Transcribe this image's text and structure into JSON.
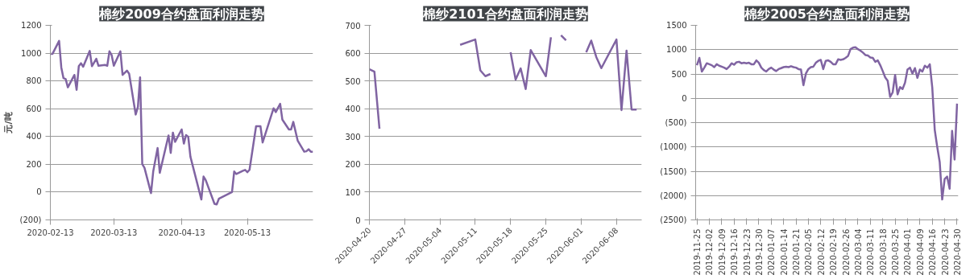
{
  "chart_data": [
    {
      "type": "line",
      "title": "棉纱2009合约盘面利润走势",
      "ylabel": "元/吨",
      "grid": "y",
      "xlim": [
        "2020-02-13",
        "2020-06-12"
      ],
      "xticks": [
        "2020-02-13",
        "2020-03-13",
        "2020-04-13",
        "2020-05-13"
      ],
      "ylim": [
        -200,
        1200
      ],
      "yticks": [
        {
          "value": -200,
          "label": "(200)"
        },
        0,
        200,
        400,
        600,
        800,
        1000,
        1200
      ],
      "x": [
        "2020-02-13",
        "2020-02-14",
        "2020-02-17",
        "2020-02-18",
        "2020-02-19",
        "2020-02-20",
        "2020-02-21",
        "2020-02-24",
        "2020-02-25",
        "2020-02-26",
        "2020-02-27",
        "2020-02-28",
        "2020-03-02",
        "2020-03-03",
        "2020-03-05",
        "2020-03-06",
        "2020-03-09",
        "2020-03-10",
        "2020-03-11",
        "2020-03-12",
        "2020-03-13",
        "2020-03-16",
        "2020-03-17",
        "2020-03-19",
        "2020-03-20",
        "2020-03-23",
        "2020-03-24",
        "2020-03-25",
        "2020-03-26",
        "2020-03-27",
        "2020-03-30",
        "2020-03-31",
        "2020-04-02",
        "2020-04-03",
        "2020-04-07",
        "2020-04-08",
        "2020-04-09",
        "2020-04-10",
        "2020-04-13",
        "2020-04-14",
        "2020-04-15",
        "2020-04-16",
        "2020-04-17",
        "2020-04-22",
        "2020-04-23",
        "2020-04-24",
        "2020-04-28",
        "2020-04-29",
        "2020-04-30",
        "2020-05-06",
        "2020-05-07",
        "2020-05-08",
        "2020-05-11",
        "2020-05-12",
        "2020-05-13",
        "2020-05-14",
        "2020-05-17",
        "2020-05-19",
        "2020-05-20",
        "2020-05-25",
        "2020-05-26",
        "2020-05-28",
        "2020-05-29",
        "2020-06-01",
        "2020-06-02",
        "2020-06-03",
        "2020-06-05",
        "2020-06-08",
        "2020-06-09",
        "2020-06-10",
        "2020-06-11",
        "2020-06-12"
      ],
      "series": [
        {
          "color": "#8064a2",
          "values": [
            995,
            995,
            1088,
            897,
            820,
            813,
            754,
            843,
            736,
            906,
            927,
            902,
            1016,
            906,
            959,
            909,
            915,
            909,
            1013,
            986,
            909,
            1013,
            843,
            874,
            852,
            558,
            612,
            826,
            201,
            175,
            -7,
            148,
            317,
            139,
            407,
            282,
            428,
            362,
            451,
            349,
            410,
            398,
            255,
            -53,
            112,
            86,
            -84,
            -89,
            -48,
            0,
            148,
            130,
            153,
            160,
            143,
            160,
            474,
            474,
            357,
            603,
            576,
            635,
            522,
            451,
            451,
            505,
            371,
            291,
            294,
            308,
            291,
            291
          ]
        }
      ]
    },
    {
      "type": "line",
      "title": "棉纱2101合约盘面利润走势",
      "grid": "y",
      "xlim": [
        "2020-04-20",
        "2020-06-13"
      ],
      "xticks": [
        "2020-04-20",
        "2020-04-27",
        "2020-05-04",
        "2020-05-11",
        "2020-05-18",
        "2020-05-25",
        "2020-06-01",
        "2020-06-08"
      ],
      "ylim": [
        0,
        700
      ],
      "yticks": [
        0,
        100,
        200,
        300,
        400,
        500,
        600,
        700
      ],
      "x": [
        "2020-04-20",
        "2020-04-21",
        "2020-04-22",
        "2020-04-23",
        "2020-05-08",
        "2020-05-11",
        "2020-05-12",
        "2020-05-13",
        "2020-05-14",
        "2020-05-15",
        "2020-05-18",
        "2020-05-19",
        "2020-05-20",
        "2020-05-21",
        "2020-05-22",
        "2020-05-25",
        "2020-05-26",
        "2020-05-27",
        "2020-05-28",
        "2020-05-29",
        "2020-06-01",
        "2020-06-02",
        "2020-06-03",
        "2020-06-04",
        "2020-06-05",
        "2020-06-08",
        "2020-06-09",
        "2020-06-10",
        "2020-06-11",
        "2020-06-12"
      ],
      "series": [
        {
          "color": "#8064a2",
          "values": [
            542,
            533,
            328,
            null,
            630,
            649,
            538,
            517,
            525,
            null,
            603,
            505,
            545,
            471,
            611,
            517,
            657,
            null,
            664,
            646,
            null,
            603,
            645,
            586,
            546,
            649,
            395,
            609,
            397,
            397
          ]
        }
      ]
    },
    {
      "type": "line",
      "title": "棉纱2005合约盘面利润走势",
      "grid": "y",
      "ylim": [
        -2500,
        1500
      ],
      "yticks": [
        {
          "value": -2500,
          "label": "(2500)"
        },
        {
          "value": -2000,
          "label": "(2000)"
        },
        {
          "value": -1500,
          "label": "(1500)"
        },
        {
          "value": -1000,
          "label": "(1000)"
        },
        {
          "value": -500,
          "label": "(500)"
        },
        0,
        500,
        1000,
        1500
      ],
      "categories": [
        "2019-11-25",
        null,
        null,
        null,
        null,
        "2019-12-02",
        null,
        null,
        null,
        null,
        "2019-12-09",
        null,
        null,
        null,
        null,
        "2019-12-16",
        null,
        null,
        null,
        null,
        "2019-12-23",
        null,
        null,
        null,
        null,
        "2019-12-30",
        null,
        null,
        null,
        null,
        "2020-01-07",
        null,
        null,
        null,
        null,
        "2020-01-14",
        null,
        null,
        null,
        null,
        "2020-01-21",
        null,
        null,
        null,
        null,
        "2020-02-05",
        null,
        null,
        null,
        null,
        "2020-02-12",
        null,
        null,
        null,
        null,
        "2020-02-19",
        null,
        null,
        null,
        null,
        "2020-02-26",
        null,
        null,
        null,
        null,
        "2020-03-04",
        null,
        null,
        null,
        null,
        "2020-03-11",
        null,
        null,
        null,
        null,
        "2020-03-18",
        null,
        null,
        null,
        null,
        "2020-03-25",
        null,
        null,
        null,
        null,
        "2020-04-01",
        null,
        null,
        null,
        null,
        "2020-04-09",
        null,
        null,
        null,
        null,
        "2020-04-16",
        null,
        null,
        null,
        null,
        "2020-04-23",
        null,
        null,
        null,
        null,
        "2020-04-30"
      ],
      "series": [
        {
          "color": "#8064a2",
          "values": [
            680,
            830,
            550,
            630,
            720,
            700,
            680,
            640,
            700,
            670,
            650,
            630,
            600,
            650,
            720,
            690,
            740,
            750,
            720,
            730,
            720,
            730,
            700,
            700,
            780,
            730,
            630,
            580,
            550,
            600,
            630,
            590,
            560,
            600,
            620,
            640,
            650,
            640,
            660,
            640,
            630,
            600,
            590,
            270,
            510,
            600,
            640,
            650,
            730,
            770,
            790,
            600,
            770,
            780,
            750,
            700,
            700,
            800,
            790,
            800,
            830,
            870,
            1010,
            1040,
            1050,
            1010,
            980,
            940,
            890,
            880,
            840,
            830,
            750,
            780,
            680,
            560,
            430,
            360,
            30,
            120,
            480,
            80,
            230,
            190,
            320,
            590,
            630,
            510,
            620,
            420,
            590,
            550,
            670,
            630,
            700,
            220,
            -650,
            -1000,
            -1310,
            -2080,
            -1660,
            -1610,
            -1860,
            -670,
            -1260,
            -110
          ]
        }
      ]
    }
  ]
}
